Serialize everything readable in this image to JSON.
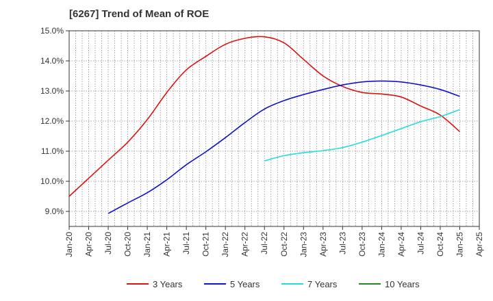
{
  "chart_data": {
    "type": "line",
    "title": "[6267]  Trend of Mean of ROE",
    "xlabel": "",
    "ylabel": "",
    "x_ticks": [
      "Jan-20",
      "Apr-20",
      "Jul-20",
      "Oct-20",
      "Jan-21",
      "Apr-21",
      "Jul-21",
      "Oct-21",
      "Jan-22",
      "Apr-22",
      "Jul-22",
      "Oct-22",
      "Jan-23",
      "Apr-23",
      "Jul-23",
      "Oct-23",
      "Jan-24",
      "Apr-24",
      "Jul-24",
      "Oct-24",
      "Jan-25",
      "Apr-25"
    ],
    "y_ticks": [
      9.0,
      10.0,
      11.0,
      12.0,
      13.0,
      14.0,
      15.0
    ],
    "y_tick_labels": [
      "9.0%",
      "10.0%",
      "11.0%",
      "12.0%",
      "13.0%",
      "14.0%",
      "15.0%"
    ],
    "ylim": [
      8.5,
      15.0
    ],
    "grid": true,
    "legend_position": "bottom",
    "series": [
      {
        "name": "3 Years",
        "color": "#dd1111",
        "x": [
          "Jan-20",
          "Apr-20",
          "Jul-20",
          "Oct-20",
          "Jan-21",
          "Apr-21",
          "Jul-21",
          "Oct-21",
          "Jan-22",
          "Apr-22",
          "Jul-22",
          "Oct-22",
          "Jan-23",
          "Apr-23",
          "Jul-23",
          "Oct-23",
          "Jan-24",
          "Apr-24",
          "Jul-24",
          "Oct-24",
          "Jan-25"
        ],
        "values": [
          9.5,
          10.1,
          10.7,
          11.3,
          12.05,
          12.95,
          13.7,
          14.15,
          14.55,
          14.75,
          14.8,
          14.6,
          14.05,
          13.5,
          13.15,
          12.95,
          12.9,
          12.8,
          12.5,
          12.2,
          11.65
        ]
      },
      {
        "name": "5 Years",
        "color": "#1111cc",
        "x": [
          "Jul-20",
          "Oct-20",
          "Jan-21",
          "Apr-21",
          "Jul-21",
          "Oct-21",
          "Jan-22",
          "Apr-22",
          "Jul-22",
          "Oct-22",
          "Jan-23",
          "Apr-23",
          "Jul-23",
          "Oct-23",
          "Jan-24",
          "Apr-24",
          "Jul-24",
          "Oct-24",
          "Jan-25"
        ],
        "values": [
          8.93,
          9.28,
          9.62,
          10.05,
          10.55,
          10.98,
          11.45,
          11.95,
          12.4,
          12.68,
          12.88,
          13.05,
          13.2,
          13.3,
          13.33,
          13.3,
          13.2,
          13.05,
          12.82
        ]
      },
      {
        "name": "7 Years",
        "color": "#22dddd",
        "x": [
          "Jul-22",
          "Oct-22",
          "Jan-23",
          "Apr-23",
          "Jul-23",
          "Oct-23",
          "Jan-24",
          "Apr-24",
          "Jul-24",
          "Oct-24",
          "Jan-25"
        ],
        "values": [
          10.68,
          10.85,
          10.95,
          11.02,
          11.12,
          11.3,
          11.52,
          11.75,
          11.98,
          12.15,
          12.38
        ]
      },
      {
        "name": "10 Years",
        "color": "#228822",
        "x": [],
        "values": []
      }
    ]
  }
}
